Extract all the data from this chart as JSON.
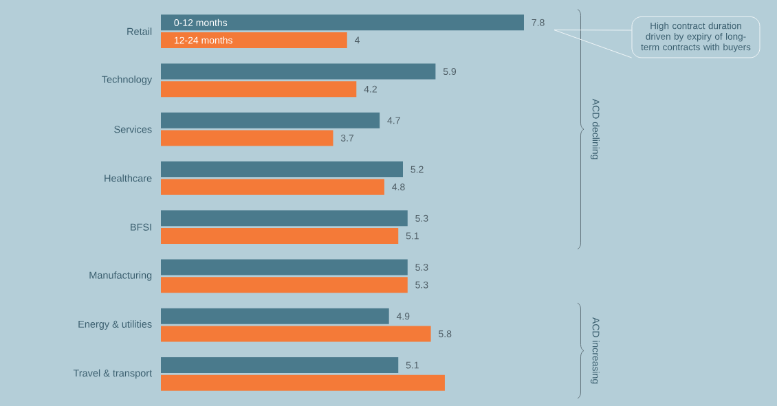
{
  "chart_data": {
    "type": "bar",
    "orientation": "horizontal",
    "legend": "top left",
    "categories": [
      "Retail",
      "Technology",
      "Services",
      "Healthcare",
      "BFSI",
      "Manufacturing",
      "Energy & utilities",
      "Travel & transport"
    ],
    "series": [
      {
        "name": "0-12 months",
        "color": "#4a7a8c",
        "values": [
          7.8,
          5.9,
          4.7,
          5.2,
          5.3,
          5.3,
          4.9,
          5.1
        ],
        "value_labels": [
          "7.8",
          "5.9",
          "4.7",
          "5.2",
          "5.3",
          "5.3",
          "4.9",
          "5.1"
        ]
      },
      {
        "name": "12-24 months",
        "color": "#f47a38",
        "values": [
          4,
          4.2,
          3.7,
          4.8,
          5.1,
          5.3,
          5.8,
          6.1
        ],
        "value_labels": [
          "4",
          "4.2",
          "3.7",
          "4.8",
          "5.1",
          "5.3",
          "5.8",
          null
        ]
      }
    ],
    "annotations": [
      "ACD declining",
      "ACD increasing",
      "High contract duration driven by expiry of long-term contracts with buyers"
    ]
  }
}
